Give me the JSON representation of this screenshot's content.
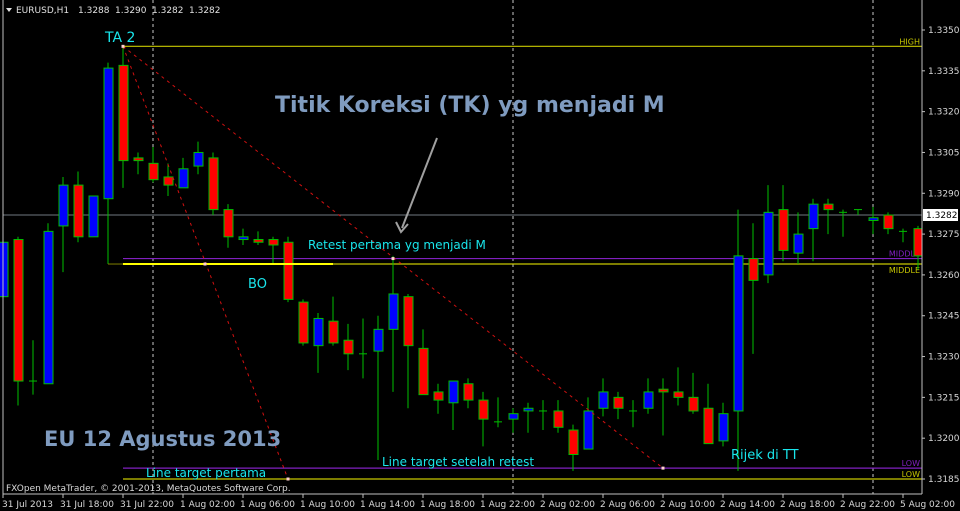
{
  "header": {
    "symbol": "EURUSD,H1",
    "open": "1.3288",
    "high": "1.3290",
    "low": "1.3282",
    "close": "1.3282"
  },
  "footer": "FXOpen MetaTrader, © 2001-2013, MetaQuotes Software Corp.",
  "colors": {
    "background": "#000000",
    "bull": "#0000ff",
    "bear": "#ff0000",
    "wick": "#00c000",
    "level_yellow": "#c8c800",
    "level_purple": "#8020c0",
    "trendline": "#d01010",
    "annotation": "#19e6ec",
    "title": "#7f9bbf"
  },
  "annotations": {
    "ta2": "TA 2",
    "tk_title": "Titik Koreksi (TK) yg menjadi M",
    "retest": "Retest pertama yg menjadi M",
    "bo": "BO",
    "eu_date": "EU 12 Agustus 2013",
    "line_target_retest": "Line target setelah retest",
    "line_target_first": "Line target pertama",
    "rijek": "Rijek di TT"
  },
  "chart_data": {
    "type": "candlestick",
    "symbol": "EURUSD",
    "timeframe": "H1",
    "ylim": [
      1.318,
      1.3355
    ],
    "grid": false,
    "current_price": "1.3282",
    "y_ticks": [
      "1.3350",
      "1.3335",
      "1.3320",
      "1.3305",
      "1.3290",
      "1.3275",
      "1.3260",
      "1.3245",
      "1.3230",
      "1.3215",
      "1.3200",
      "1.3185"
    ],
    "x_ticks": [
      "31 Jul 2013",
      "31 Jul 18:00",
      "31 Jul 22:00",
      "1 Aug 02:00",
      "1 Aug 06:00",
      "1 Aug 10:00",
      "1 Aug 14:00",
      "1 Aug 18:00",
      "1 Aug 22:00",
      "2 Aug 02:00",
      "2 Aug 06:00",
      "2 Aug 10:00",
      "2 Aug 14:00",
      "2 Aug 18:00",
      "2 Aug 22:00",
      "5 Aug 02:00"
    ],
    "levels": [
      {
        "label": "HIGH",
        "price": 1.3344,
        "color": "yellow"
      },
      {
        "label": "MIDDLE",
        "price": 1.3266,
        "color": "purple"
      },
      {
        "label": "MIDDLE",
        "price": 1.3264,
        "color": "yellow"
      },
      {
        "label": "LOW",
        "price": 1.3189,
        "color": "purple"
      },
      {
        "label": "LOW",
        "price": 1.3185,
        "color": "yellow"
      }
    ],
    "candles_columns": [
      "time",
      "open",
      "high",
      "low",
      "close"
    ],
    "candles": [
      [
        "31 Jul 14:00",
        1.3252,
        1.3274,
        1.3251,
        1.3272
      ],
      [
        "31 Jul 15:00",
        1.3273,
        1.3274,
        1.3212,
        1.3221
      ],
      [
        "31 Jul 16:00",
        1.3221,
        1.3236,
        1.3216,
        1.3221
      ],
      [
        "31 Jul 17:00",
        1.322,
        1.3279,
        1.322,
        1.3276
      ],
      [
        "31 Jul 18:00",
        1.3278,
        1.3296,
        1.3261,
        1.3293
      ],
      [
        "31 Jul 19:00",
        1.3293,
        1.3298,
        1.3272,
        1.3274
      ],
      [
        "31 Jul 20:00",
        1.3274,
        1.3289,
        1.3274,
        1.3289
      ],
      [
        "31 Jul 21:00",
        1.3288,
        1.3338,
        1.3264,
        1.3336
      ],
      [
        "31 Jul 22:00",
        1.3337,
        1.3344,
        1.3292,
        1.3302
      ],
      [
        "31 Jul 23:00",
        1.3303,
        1.3305,
        1.3297,
        1.3302
      ],
      [
        "1 Aug 00:00",
        1.3301,
        1.3307,
        1.3294,
        1.3295
      ],
      [
        "1 Aug 01:00",
        1.3296,
        1.3301,
        1.3289,
        1.3293
      ],
      [
        "1 Aug 02:00",
        1.3292,
        1.3303,
        1.3292,
        1.3299
      ],
      [
        "1 Aug 03:00",
        1.33,
        1.3309,
        1.3297,
        1.3305
      ],
      [
        "1 Aug 04:00",
        1.3303,
        1.3305,
        1.3282,
        1.3284
      ],
      [
        "1 Aug 05:00",
        1.3284,
        1.3286,
        1.327,
        1.3274
      ],
      [
        "1 Aug 06:00",
        1.3273,
        1.3277,
        1.3271,
        1.3274
      ],
      [
        "1 Aug 07:00",
        1.3273,
        1.3276,
        1.3271,
        1.3272
      ],
      [
        "1 Aug 08:00",
        1.3273,
        1.3274,
        1.3264,
        1.3271
      ],
      [
        "1 Aug 09:00",
        1.3272,
        1.3274,
        1.325,
        1.3251
      ],
      [
        "1 Aug 10:00",
        1.325,
        1.3251,
        1.3234,
        1.3235
      ],
      [
        "1 Aug 11:00",
        1.3234,
        1.3246,
        1.3224,
        1.3244
      ],
      [
        "1 Aug 12:00",
        1.3243,
        1.3252,
        1.3234,
        1.3235
      ],
      [
        "1 Aug 13:00",
        1.3236,
        1.3242,
        1.3225,
        1.3231
      ],
      [
        "1 Aug 14:00",
        1.3231,
        1.3244,
        1.3222,
        1.3231
      ],
      [
        "1 Aug 15:00",
        1.3232,
        1.3245,
        1.3192,
        1.324
      ],
      [
        "1 Aug 16:00",
        1.324,
        1.3267,
        1.3217,
        1.3253
      ],
      [
        "1 Aug 17:00",
        1.3252,
        1.3253,
        1.3211,
        1.3234
      ],
      [
        "1 Aug 18:00",
        1.3233,
        1.324,
        1.3216,
        1.3216
      ],
      [
        "1 Aug 19:00",
        1.3217,
        1.322,
        1.3209,
        1.3214
      ],
      [
        "1 Aug 20:00",
        1.3213,
        1.3221,
        1.3203,
        1.3221
      ],
      [
        "1 Aug 21:00",
        1.322,
        1.3222,
        1.3211,
        1.3214
      ],
      [
        "1 Aug 22:00",
        1.3214,
        1.3217,
        1.3197,
        1.3207
      ],
      [
        "1 Aug 23:00",
        1.3206,
        1.3215,
        1.3204,
        1.3206
      ],
      [
        "2 Aug 00:00",
        1.3207,
        1.3211,
        1.3202,
        1.3209
      ],
      [
        "2 Aug 01:00",
        1.321,
        1.3213,
        1.3202,
        1.3211
      ],
      [
        "2 Aug 02:00",
        1.321,
        1.3214,
        1.3203,
        1.321
      ],
      [
        "2 Aug 03:00",
        1.321,
        1.3214,
        1.3202,
        1.3204
      ],
      [
        "2 Aug 04:00",
        1.3203,
        1.3205,
        1.3188,
        1.3194
      ],
      [
        "2 Aug 05:00",
        1.3196,
        1.3215,
        1.3196,
        1.321
      ],
      [
        "2 Aug 06:00",
        1.3211,
        1.3222,
        1.3208,
        1.3217
      ],
      [
        "2 Aug 07:00",
        1.3215,
        1.3217,
        1.3207,
        1.3211
      ],
      [
        "2 Aug 08:00",
        1.321,
        1.3214,
        1.3204,
        1.321
      ],
      [
        "2 Aug 09:00",
        1.3211,
        1.3222,
        1.3209,
        1.3217
      ],
      [
        "2 Aug 10:00",
        1.3218,
        1.3222,
        1.3201,
        1.3217
      ],
      [
        "2 Aug 11:00",
        1.3217,
        1.3226,
        1.3212,
        1.3215
      ],
      [
        "2 Aug 12:00",
        1.3215,
        1.3224,
        1.3209,
        1.321
      ],
      [
        "2 Aug 13:00",
        1.3211,
        1.322,
        1.3198,
        1.3198
      ],
      [
        "2 Aug 14:00",
        1.3199,
        1.3213,
        1.3197,
        1.3209
      ],
      [
        "2 Aug 15:00",
        1.321,
        1.3284,
        1.3188,
        1.3267
      ],
      [
        "2 Aug 16:00",
        1.3266,
        1.3279,
        1.3231,
        1.3258
      ],
      [
        "2 Aug 17:00",
        1.326,
        1.3293,
        1.3257,
        1.3283
      ],
      [
        "2 Aug 18:00",
        1.3284,
        1.3293,
        1.3265,
        1.3269
      ],
      [
        "2 Aug 19:00",
        1.3268,
        1.3283,
        1.3264,
        1.3275
      ],
      [
        "2 Aug 20:00",
        1.3277,
        1.3288,
        1.3265,
        1.3286
      ],
      [
        "2 Aug 21:00",
        1.3286,
        1.3288,
        1.3275,
        1.3284
      ],
      [
        "2 Aug 22:00",
        1.3283,
        1.3284,
        1.3274,
        1.3283
      ],
      [
        "2 Aug 23:00",
        1.3284,
        1.3284,
        1.3282,
        1.3284
      ],
      [
        "5 Aug 00:00",
        1.328,
        1.3285,
        1.3275,
        1.3281
      ],
      [
        "5 Aug 01:00",
        1.3282,
        1.3283,
        1.3275,
        1.3277
      ],
      [
        "5 Aug 02:00",
        1.3276,
        1.3277,
        1.3272,
        1.3276
      ],
      [
        "5 Aug 03:00",
        1.3277,
        1.3278,
        1.3262,
        1.3267
      ]
    ]
  }
}
